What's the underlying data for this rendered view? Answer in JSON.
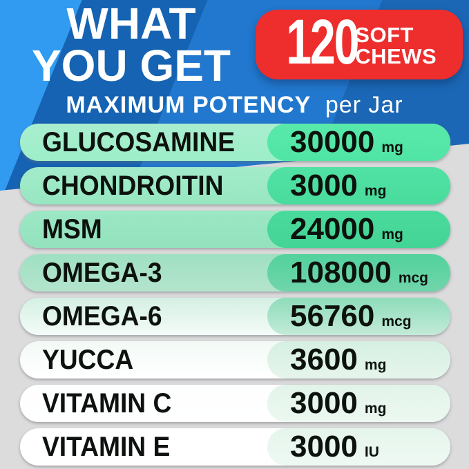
{
  "header": {
    "title_line1": "WHAT",
    "title_line2": "YOU GET",
    "badge": {
      "count": "120",
      "unit_line1": "SOFT",
      "unit_line2": "CHEWS"
    },
    "subtitle_bold": "MAXIMUM POTENCY",
    "subtitle_regular": "per Jar"
  },
  "colors": {
    "bg_gray": "#dcdcdd",
    "blue_light": "#309bf0",
    "blue_dark": "#1563b2",
    "blue_medium": "#2278ce",
    "blue_right": "#1b67b5",
    "badge_red": "#ee2d2d",
    "text_dark": "#0d120e"
  },
  "rows": [
    {
      "label": "GLUCOSAMINE",
      "value": "30000",
      "unit": "mg",
      "colors": {
        "left_top": "#a9eecf",
        "left_bottom": "#9deec8",
        "right_top": "#58e9ab",
        "right_bottom": "#50e5a4"
      }
    },
    {
      "label": "CHONDROITIN",
      "value": "3000",
      "unit": "mg",
      "colors": {
        "left_top": "#a3ebca",
        "left_bottom": "#97e7c1",
        "right_top": "#50e2a4",
        "right_bottom": "#49dc9d"
      }
    },
    {
      "label": "MSM",
      "value": "24000",
      "unit": "mg",
      "colors": {
        "left_top": "#9ce7c5",
        "left_bottom": "#93e2bd",
        "right_top": "#49db9c",
        "right_bottom": "#44d496"
      }
    },
    {
      "label": "OMEGA-3",
      "value": "108000",
      "unit": "mcg",
      "colors": {
        "left_top": "#9fe0c2",
        "left_bottom": "#b4e4cd",
        "right_top": "#52d29c",
        "right_bottom": "#71d5ab"
      }
    },
    {
      "label": "OMEGA-6",
      "value": "56760",
      "unit": "mcg",
      "colors": {
        "left_top": "#d4f0e3",
        "left_bottom": "#f4fbf8",
        "right_top": "#8edcba",
        "right_bottom": "#c3ebd8"
      }
    },
    {
      "label": "YUCCA",
      "value": "3600",
      "unit": "mg",
      "colors": {
        "left_top": "#f3faf6",
        "left_bottom": "#ffffff",
        "right_top": "#d5f0e2",
        "right_bottom": "#e6f5ec"
      }
    },
    {
      "label": "VITAMIN C",
      "value": "3000",
      "unit": "mg",
      "colors": {
        "left_top": "#fdfefe",
        "left_bottom": "#ffffff",
        "right_top": "#e2f4ea",
        "right_bottom": "#ecf8f1"
      }
    },
    {
      "label": "VITAMIN E",
      "value": "3000",
      "unit": "IU",
      "colors": {
        "left_top": "#ffffff",
        "left_bottom": "#ffffff",
        "right_top": "#e5f5ec",
        "right_bottom": "#eef9f3"
      }
    }
  ]
}
